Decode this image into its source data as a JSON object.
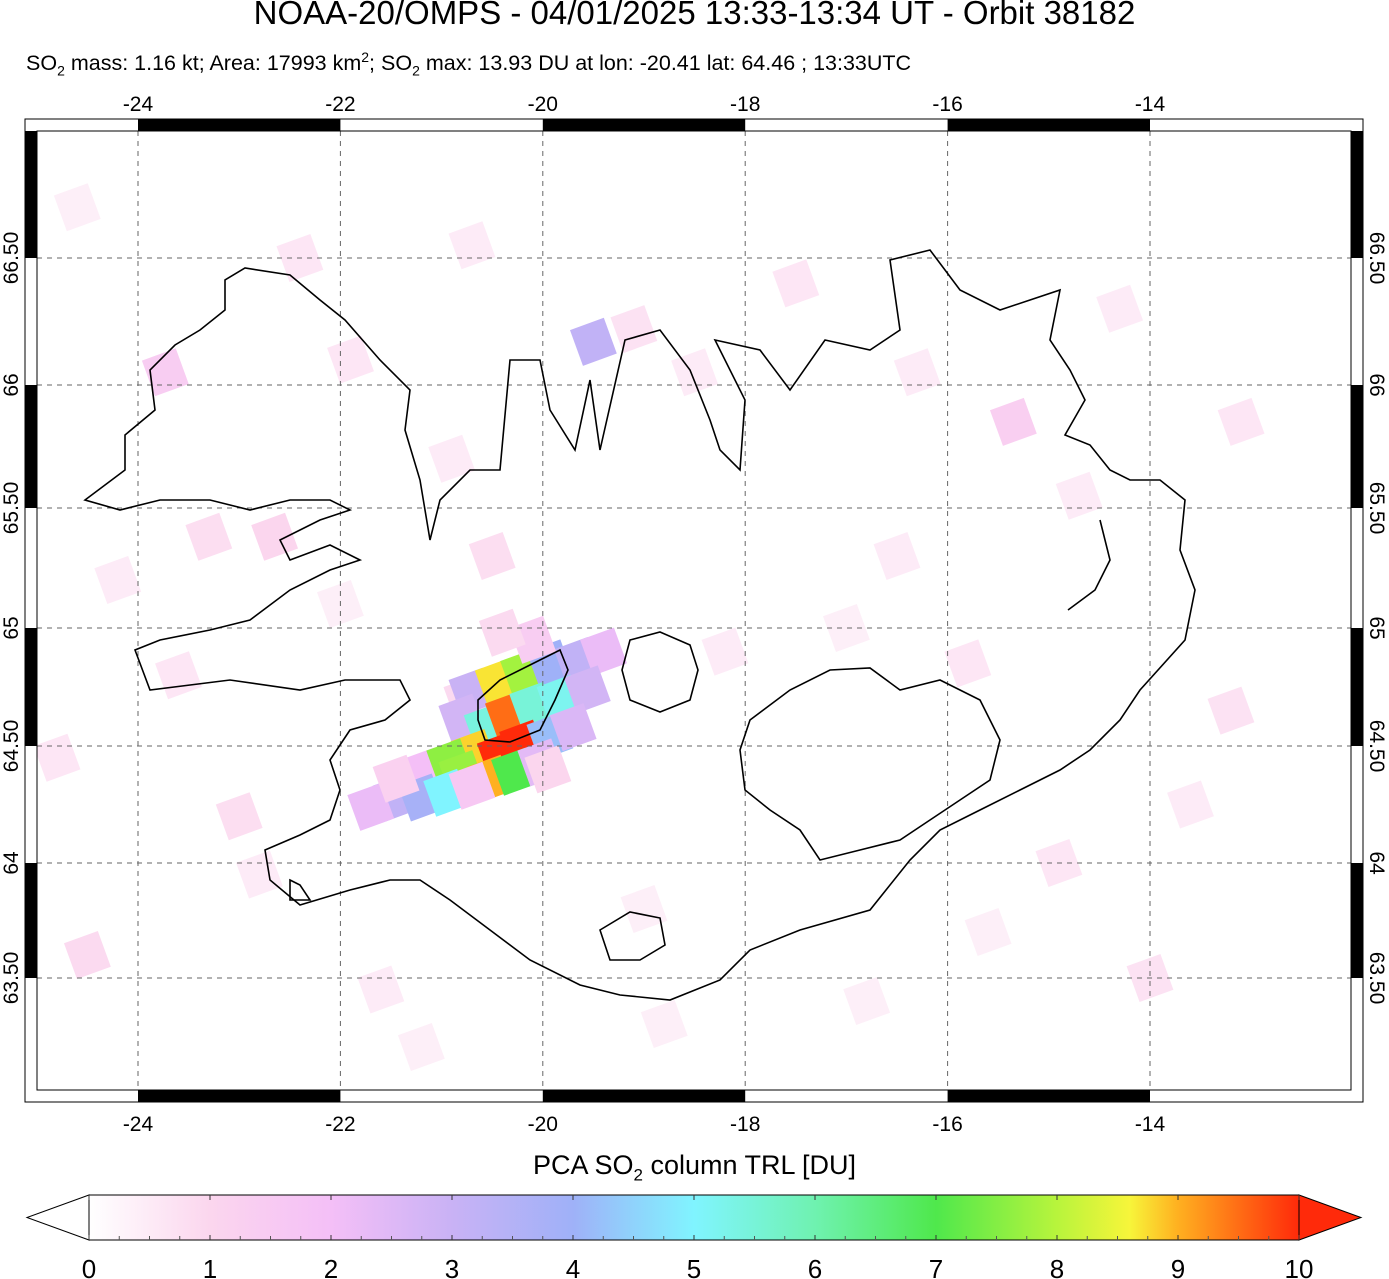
{
  "title": "NOAA-20/OMPS - 04/01/2025 13:33-13:34 UT - Orbit 38182",
  "subtitle": {
    "so2": "SO",
    "sub2": "2",
    "mass": " mass: 1.16 kt; Area: 17993 km",
    "sup2": "2",
    "semicolon": ";",
    "so2b": " SO",
    "sub2b": "2",
    "rest": " max: 13.93 DU at lon: -20.41 lat: 64.46 ; 13:33UTC"
  },
  "map": {
    "lon_ticks": [
      "-24",
      "-22",
      "-20",
      "-18",
      "-16",
      "-14"
    ],
    "lon_values": [
      -24,
      -22,
      -20,
      -18,
      -16,
      -14
    ],
    "lat_ticks": [
      "66.50",
      "66",
      "65.50",
      "65",
      "64.50",
      "64",
      "63.50"
    ],
    "lat_values": [
      66.5,
      66,
      65.5,
      65,
      64.5,
      64,
      63.5
    ],
    "plume_cells": [
      [
        -20.7,
        64.73,
        3.0
      ],
      [
        -20.44,
        64.77,
        8.7
      ],
      [
        -20.19,
        64.81,
        7.8
      ],
      [
        -19.93,
        64.85,
        4.0
      ],
      [
        -19.66,
        64.86,
        3.2
      ],
      [
        -19.4,
        64.9,
        2.2
      ],
      [
        -20.8,
        64.62,
        2.8
      ],
      [
        -20.55,
        64.58,
        5.4
      ],
      [
        -20.34,
        64.63,
        9.5
      ],
      [
        -20.1,
        64.67,
        5.5
      ],
      [
        -19.83,
        64.7,
        5.2
      ],
      [
        -19.56,
        64.74,
        2.8
      ],
      [
        -20.68,
        64.47,
        8.8
      ],
      [
        -20.42,
        64.46,
        13.9
      ],
      [
        -20.2,
        64.51,
        10.4
      ],
      [
        -19.93,
        64.54,
        4.2
      ],
      [
        -19.7,
        64.58,
        2.6
      ],
      [
        -21.18,
        64.39,
        2.0
      ],
      [
        -20.92,
        64.43,
        7.6
      ],
      [
        -20.8,
        64.38,
        7.7
      ],
      [
        -20.52,
        64.36,
        9.0
      ],
      [
        -20.28,
        64.39,
        7.0
      ],
      [
        -20.02,
        64.43,
        2.4
      ],
      [
        -21.45,
        64.28,
        3.2
      ],
      [
        -21.2,
        64.28,
        3.8
      ],
      [
        -20.95,
        64.3,
        5.0
      ],
      [
        -20.7,
        64.33,
        1.6
      ],
      [
        -21.7,
        64.24,
        2.2
      ],
      [
        -21.45,
        64.36,
        1.2
      ],
      [
        -20.1,
        64.95,
        1.4
      ],
      [
        -20.4,
        64.98,
        0.9
      ],
      [
        -19.95,
        64.4,
        1.0
      ]
    ],
    "background_cells": [
      [
        -19.5,
        66.17,
        3.2
      ],
      [
        -23.73,
        66.05,
        1.4
      ],
      [
        -22.65,
        65.38,
        1.0
      ],
      [
        -20.75,
        64.7,
        0.9
      ],
      [
        -23.3,
        65.38,
        0.8
      ],
      [
        -15.35,
        65.85,
        1.3
      ],
      [
        -19.1,
        66.22,
        0.7
      ],
      [
        -17.5,
        66.4,
        0.6
      ],
      [
        -21.9,
        66.1,
        0.6
      ],
      [
        -16.5,
        65.3,
        0.5
      ],
      [
        -14.7,
        65.55,
        0.5
      ],
      [
        -13.2,
        64.65,
        0.7
      ],
      [
        -13.1,
        65.85,
        0.6
      ],
      [
        -24.8,
        64.45,
        0.6
      ],
      [
        -23.0,
        64.2,
        0.8
      ],
      [
        -22.8,
        63.95,
        0.5
      ],
      [
        -24.5,
        63.6,
        0.9
      ],
      [
        -21.6,
        63.45,
        0.5
      ],
      [
        -16.8,
        63.4,
        0.4
      ],
      [
        -14.9,
        64.0,
        0.6
      ],
      [
        -14.0,
        63.5,
        0.7
      ],
      [
        -18.5,
        66.05,
        0.5
      ],
      [
        -20.9,
        65.7,
        0.5
      ],
      [
        -22.0,
        65.1,
        0.4
      ],
      [
        -17.0,
        65.0,
        0.4
      ],
      [
        -15.8,
        64.85,
        0.6
      ],
      [
        -19.0,
        63.8,
        0.4
      ],
      [
        -23.6,
        64.8,
        0.6
      ],
      [
        -13.6,
        64.25,
        0.5
      ],
      [
        -21.2,
        63.2,
        0.4
      ],
      [
        -20.5,
        65.3,
        0.8
      ],
      [
        -24.2,
        65.2,
        0.5
      ],
      [
        -15.6,
        63.7,
        0.4
      ],
      [
        -18.2,
        64.9,
        0.5
      ],
      [
        -16.3,
        66.05,
        0.5
      ],
      [
        -22.4,
        66.5,
        0.6
      ],
      [
        -20.7,
        66.55,
        0.5
      ],
      [
        -14.3,
        66.3,
        0.5
      ],
      [
        -24.6,
        66.7,
        0.4
      ],
      [
        -18.8,
        63.3,
        0.4
      ]
    ]
  },
  "colorbar": {
    "title_pre": "PCA SO",
    "title_sub": "2",
    "title_post": " column TRL [DU]",
    "ticks": [
      "0",
      "1",
      "2",
      "3",
      "4",
      "5",
      "6",
      "7",
      "8",
      "9",
      "10"
    ],
    "min": 0,
    "max": 10,
    "stops": [
      [
        0,
        "#ffffff"
      ],
      [
        1,
        "#fbd6ee"
      ],
      [
        2,
        "#f4bff7"
      ],
      [
        3,
        "#c9b2f5"
      ],
      [
        4,
        "#9fb1f8"
      ],
      [
        5,
        "#80f4ff"
      ],
      [
        6,
        "#6ff2b0"
      ],
      [
        7,
        "#4fe84c"
      ],
      [
        8,
        "#b8f43c"
      ],
      [
        8.6,
        "#f7f53a"
      ],
      [
        9,
        "#ffb020"
      ],
      [
        10,
        "#ff2a0a"
      ]
    ]
  }
}
